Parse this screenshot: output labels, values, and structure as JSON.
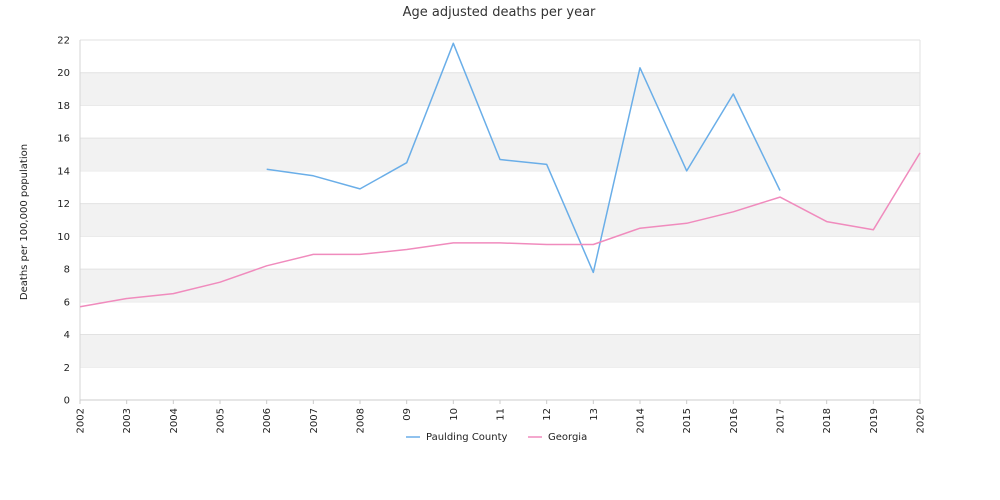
{
  "chart_data": {
    "type": "line",
    "title": "Age adjusted deaths per year",
    "ylabel": "Deaths per 100,000 population",
    "xlabel": "",
    "categories": [
      "2002",
      "2003",
      "2004",
      "2005",
      "2006",
      "2007",
      "2008",
      "09",
      "10",
      "11",
      "12",
      "13",
      "2014",
      "2015",
      "2016",
      "2017",
      "2018",
      "2019",
      "2020"
    ],
    "ylim": [
      0,
      22
    ],
    "yticks": [
      0,
      2,
      4,
      6,
      8,
      10,
      12,
      14,
      16,
      18,
      20,
      22
    ],
    "grid": "alternating horizontal bands",
    "legend_position": "bottom-center",
    "series": [
      {
        "name": "Paulding County",
        "color": "#6aaee8",
        "values": [
          null,
          null,
          null,
          null,
          14.1,
          13.7,
          12.9,
          14.5,
          21.8,
          14.7,
          14.4,
          7.8,
          20.3,
          14.0,
          18.7,
          12.8,
          null,
          null,
          null
        ]
      },
      {
        "name": "Georgia",
        "color": "#f08bbd",
        "values": [
          5.7,
          6.2,
          6.5,
          7.2,
          8.2,
          8.9,
          8.9,
          9.2,
          9.6,
          9.6,
          9.5,
          9.5,
          10.5,
          10.8,
          11.5,
          12.4,
          10.9,
          10.4,
          15.1
        ]
      }
    ]
  }
}
